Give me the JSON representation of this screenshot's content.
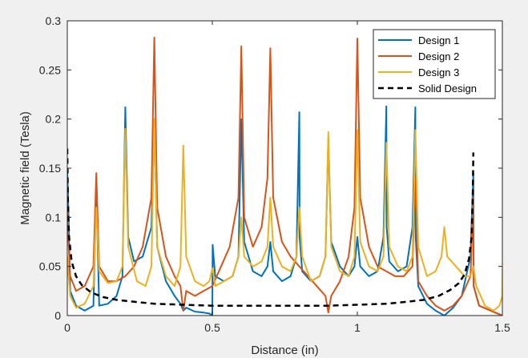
{
  "chart_data": {
    "type": "line",
    "title": "",
    "xlabel": "Distance (in)",
    "ylabel": "Magnetic field (Tesla)",
    "xlim": [
      0,
      1.5
    ],
    "ylim": [
      0,
      0.3
    ],
    "xticks": [
      0,
      0.5,
      1,
      1.5
    ],
    "xtick_labels": [
      "0",
      "0.5",
      "1",
      "1.5"
    ],
    "yticks": [
      0,
      0.05,
      0.1,
      0.15,
      0.2,
      0.25,
      0.3
    ],
    "ytick_labels": [
      "0",
      "0.05",
      "0.1",
      "0.15",
      "0.2",
      "0.25",
      "0.3"
    ],
    "grid": false,
    "legend_position": "top-right",
    "series": [
      {
        "name": "Design 1",
        "color": "#0072BD",
        "style": "solid",
        "x": [
          0.0,
          0.002,
          0.01,
          0.03,
          0.06,
          0.09,
          0.1,
          0.11,
          0.14,
          0.17,
          0.19,
          0.2,
          0.21,
          0.23,
          0.26,
          0.29,
          0.3,
          0.31,
          0.34,
          0.37,
          0.39,
          0.4,
          0.41,
          0.44,
          0.47,
          0.49,
          0.5,
          0.501,
          0.51,
          0.54,
          0.57,
          0.59,
          0.6,
          0.61,
          0.64,
          0.67,
          0.69,
          0.7,
          0.71,
          0.74,
          0.77,
          0.79,
          0.8,
          0.801,
          0.81,
          0.84,
          0.87,
          0.89,
          0.9,
          0.91,
          0.94,
          0.97,
          0.99,
          1.0,
          1.01,
          1.04,
          1.07,
          1.09,
          1.1,
          1.101,
          1.11,
          1.14,
          1.17,
          1.19,
          1.2,
          1.201,
          1.21,
          1.24,
          1.27,
          1.3,
          1.33,
          1.36,
          1.39,
          1.4,
          1.401,
          1.42,
          1.46,
          1.5
        ],
        "y": [
          0.145,
          0.13,
          0.025,
          0.01,
          0.005,
          0.01,
          0.13,
          0.01,
          0.012,
          0.02,
          0.04,
          0.212,
          0.08,
          0.055,
          0.06,
          0.09,
          0.2,
          0.07,
          0.035,
          0.02,
          0.012,
          0.005,
          0.008,
          0.004,
          0.003,
          0.002,
          0.0,
          0.072,
          0.04,
          0.035,
          0.04,
          0.06,
          0.2,
          0.075,
          0.045,
          0.04,
          0.05,
          0.075,
          0.045,
          0.035,
          0.04,
          0.06,
          0.207,
          0.08,
          0.045,
          0.035,
          0.04,
          0.06,
          0.18,
          0.075,
          0.05,
          0.04,
          0.05,
          0.08,
          0.05,
          0.04,
          0.045,
          0.08,
          0.213,
          0.09,
          0.055,
          0.045,
          0.05,
          0.09,
          0.212,
          0.08,
          0.03,
          0.012,
          0.005,
          0.0,
          0.008,
          0.02,
          0.06,
          0.145,
          0.03,
          0.01,
          0.005,
          0.0
        ]
      },
      {
        "name": "Design 2",
        "color": "#D95319",
        "style": "solid",
        "x": [
          0.0,
          0.002,
          0.01,
          0.03,
          0.06,
          0.09,
          0.1,
          0.11,
          0.14,
          0.17,
          0.2,
          0.23,
          0.26,
          0.29,
          0.3,
          0.31,
          0.34,
          0.37,
          0.39,
          0.4,
          0.41,
          0.44,
          0.47,
          0.5,
          0.53,
          0.56,
          0.59,
          0.6,
          0.61,
          0.64,
          0.67,
          0.69,
          0.7,
          0.71,
          0.74,
          0.77,
          0.8,
          0.83,
          0.86,
          0.89,
          0.9,
          0.91,
          0.94,
          0.97,
          0.99,
          1.0,
          1.01,
          1.04,
          1.07,
          1.1,
          1.13,
          1.16,
          1.19,
          1.2,
          1.21,
          1.24,
          1.27,
          1.3,
          1.33,
          1.36,
          1.39,
          1.4,
          1.401,
          1.42,
          1.46,
          1.5
        ],
        "y": [
          0.11,
          0.09,
          0.04,
          0.025,
          0.03,
          0.05,
          0.145,
          0.05,
          0.035,
          0.035,
          0.04,
          0.05,
          0.07,
          0.12,
          0.283,
          0.11,
          0.06,
          0.04,
          0.03,
          0.005,
          0.025,
          0.02,
          0.025,
          0.03,
          0.05,
          0.07,
          0.12,
          0.274,
          0.1,
          0.07,
          0.09,
          0.14,
          0.272,
          0.12,
          0.075,
          0.06,
          0.05,
          0.04,
          0.03,
          0.02,
          0.003,
          0.02,
          0.035,
          0.06,
          0.11,
          0.282,
          0.12,
          0.07,
          0.05,
          0.045,
          0.04,
          0.04,
          0.05,
          0.14,
          0.035,
          0.02,
          0.01,
          0.005,
          0.01,
          0.02,
          0.04,
          0.12,
          0.03,
          0.01,
          0.005,
          0.0
        ]
      },
      {
        "name": "Design 3",
        "color": "#EDB120",
        "style": "solid",
        "x": [
          0.0,
          0.002,
          0.01,
          0.03,
          0.06,
          0.09,
          0.1,
          0.11,
          0.14,
          0.17,
          0.19,
          0.2,
          0.21,
          0.24,
          0.27,
          0.29,
          0.3,
          0.31,
          0.34,
          0.37,
          0.39,
          0.4,
          0.41,
          0.44,
          0.47,
          0.49,
          0.5,
          0.501,
          0.51,
          0.54,
          0.57,
          0.59,
          0.6,
          0.61,
          0.64,
          0.67,
          0.69,
          0.7,
          0.71,
          0.74,
          0.77,
          0.79,
          0.8,
          0.81,
          0.84,
          0.87,
          0.89,
          0.9,
          0.91,
          0.94,
          0.97,
          0.99,
          1.0,
          1.01,
          1.04,
          1.07,
          1.09,
          1.1,
          1.11,
          1.14,
          1.17,
          1.19,
          1.2,
          1.21,
          1.24,
          1.27,
          1.29,
          1.3,
          1.31,
          1.34,
          1.37,
          1.39,
          1.4,
          1.41,
          1.44,
          1.47,
          1.49,
          1.5,
          1.501
        ],
        "y": [
          0.06,
          0.05,
          0.02,
          0.008,
          0.012,
          0.03,
          0.11,
          0.045,
          0.033,
          0.035,
          0.05,
          0.19,
          0.07,
          0.035,
          0.03,
          0.05,
          0.2,
          0.07,
          0.04,
          0.03,
          0.05,
          0.173,
          0.06,
          0.035,
          0.03,
          0.035,
          0.048,
          0.048,
          0.03,
          0.035,
          0.04,
          0.06,
          0.1,
          0.06,
          0.05,
          0.055,
          0.07,
          0.12,
          0.07,
          0.05,
          0.045,
          0.06,
          0.11,
          0.06,
          0.035,
          0.04,
          0.06,
          0.187,
          0.07,
          0.045,
          0.04,
          0.06,
          0.189,
          0.075,
          0.05,
          0.045,
          0.06,
          0.176,
          0.07,
          0.05,
          0.045,
          0.06,
          0.189,
          0.07,
          0.04,
          0.045,
          0.06,
          0.09,
          0.06,
          0.05,
          0.04,
          0.04,
          0.05,
          0.03,
          0.01,
          0.005,
          0.01,
          0.02,
          0.055
        ]
      },
      {
        "name": "Solid Design",
        "color": "#000000",
        "style": "dashed",
        "x": [
          0.0,
          0.002,
          0.006,
          0.015,
          0.03,
          0.05,
          0.08,
          0.12,
          0.17,
          0.23,
          0.3,
          0.4,
          0.5,
          0.6,
          0.7,
          0.8,
          0.9,
          1.0,
          1.1,
          1.17,
          1.23,
          1.28,
          1.32,
          1.35,
          1.37,
          1.385,
          1.394,
          1.398,
          1.4
        ],
        "y": [
          0.17,
          0.12,
          0.08,
          0.055,
          0.04,
          0.031,
          0.024,
          0.019,
          0.016,
          0.014,
          0.012,
          0.011,
          0.01,
          0.01,
          0.01,
          0.01,
          0.01,
          0.011,
          0.012,
          0.014,
          0.016,
          0.02,
          0.026,
          0.033,
          0.042,
          0.058,
          0.08,
          0.125,
          0.166
        ]
      }
    ]
  }
}
